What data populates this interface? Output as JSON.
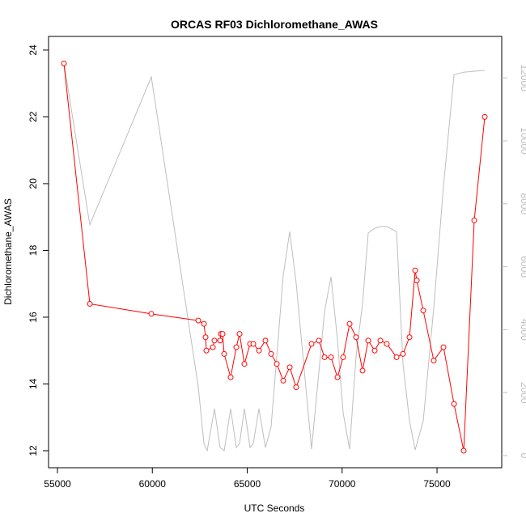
{
  "chart_data": {
    "type": "line",
    "title": "ORCAS RF03 Dichloromethane_AWAS",
    "x_label": "UTC Seconds",
    "y_label": "Dichloromethane_AWAS",
    "xlim": [
      54531,
      78410
    ],
    "xticks": [
      55000,
      60000,
      65000,
      70000,
      75000
    ],
    "ylim": [
      11.49,
      24.41
    ],
    "yticks": [
      12,
      14,
      16,
      18,
      20,
      22,
      24
    ],
    "y2lim": [
      -386,
      13316
    ],
    "y2ticks": [
      0,
      2000,
      4000,
      6000,
      8000,
      10000,
      12000
    ],
    "series": [
      {
        "color": "#bebebe",
        "axis": "y2",
        "markers": false,
        "x": [
          55341,
          56706,
          59947,
          62420,
          62719,
          62889,
          63273,
          63571,
          63785,
          64126,
          64424,
          64595,
          64851,
          65149,
          65320,
          65618,
          65959,
          66258,
          66557,
          66898,
          67239,
          67580,
          68390,
          68774,
          69072,
          69414,
          69755,
          70053,
          70394,
          70736,
          71077,
          71375,
          71716,
          72015,
          72356,
          72868,
          73209,
          73550,
          73849,
          74275,
          74829,
          75341,
          75896,
          76407,
          76962,
          77516
        ],
        "values": [
          12470,
          7330,
          12030,
          2185,
          385,
          155,
          1490,
          257,
          155,
          1490,
          257,
          385,
          1490,
          257,
          385,
          1490,
          257,
          925,
          3160,
          5730,
          7120,
          5475,
          205,
          2650,
          4575,
          5680,
          3675,
          1360,
          205,
          3160,
          4830,
          7070,
          7220,
          7275,
          7275,
          7120,
          2900,
          1105,
          180,
          1105,
          4700,
          8560,
          12100,
          12180,
          12210,
          12235
        ]
      },
      {
        "color": "#ff0000",
        "axis": "y",
        "markers": true,
        "x": [
          55341,
          56706,
          59947,
          62420,
          62719,
          62804,
          62846,
          63188,
          63273,
          63571,
          63614,
          63699,
          63785,
          64126,
          64424,
          64595,
          64851,
          65149,
          65320,
          65618,
          65959,
          66258,
          66557,
          66898,
          67239,
          67580,
          68390,
          68774,
          69072,
          69414,
          69755,
          70053,
          70394,
          70736,
          71077,
          71375,
          71716,
          72015,
          72356,
          72868,
          73209,
          73550,
          73849,
          73934,
          74275,
          74829,
          75341,
          75896,
          76407,
          76962,
          77516
        ],
        "values": [
          23.6,
          16.4,
          16.1,
          15.9,
          15.8,
          15.4,
          15.0,
          15.1,
          15.3,
          15.3,
          15.5,
          15.5,
          14.9,
          14.2,
          15.1,
          15.5,
          14.6,
          15.2,
          15.2,
          15.0,
          15.3,
          14.9,
          14.6,
          14.1,
          14.5,
          13.9,
          15.2,
          15.3,
          14.8,
          14.8,
          14.2,
          14.8,
          15.8,
          15.4,
          14.4,
          15.3,
          15.0,
          15.3,
          15.2,
          14.8,
          14.9,
          15.4,
          17.4,
          17.1,
          16.2,
          14.7,
          15.1,
          13.4,
          12.0,
          18.9,
          22.0
        ]
      }
    ]
  }
}
